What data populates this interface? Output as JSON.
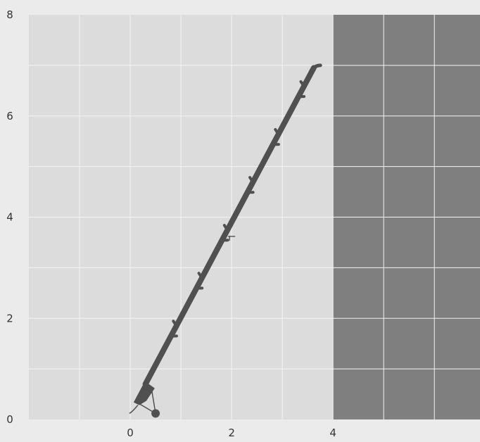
{
  "plot": {
    "x_ticks": [
      {
        "value": 0,
        "label": "0"
      },
      {
        "value": 2,
        "label": "2"
      },
      {
        "value": 4,
        "label": "4"
      }
    ],
    "y_ticks": [
      {
        "value": 0,
        "label": "0"
      },
      {
        "value": 2,
        "label": "2"
      },
      {
        "value": 4,
        "label": "4"
      },
      {
        "value": 6,
        "label": "6"
      },
      {
        "value": 8,
        "label": "8"
      }
    ],
    "x_range": [
      -2,
      6.9
    ],
    "y_range": [
      0,
      8
    ],
    "grid_step": 1,
    "dark_region_from_x": 4,
    "colors": {
      "page_background": "#ebebeb",
      "light_region": "#dcdcdc",
      "dark_region": "#7f7f7f",
      "grid_line": "#f4f4f4",
      "tool": "#505050",
      "tick_text": "#333333"
    }
  },
  "tool": {
    "name_icon": "screwdriver-icon",
    "shaft": {
      "start": [
        0.3,
        0.7
      ],
      "end": [
        3.62,
        6.95
      ]
    },
    "tip": [
      3.75,
      7.0
    ],
    "handle": [
      0.15,
      0.45
    ],
    "knob": [
      0.5,
      0.12
    ]
  }
}
